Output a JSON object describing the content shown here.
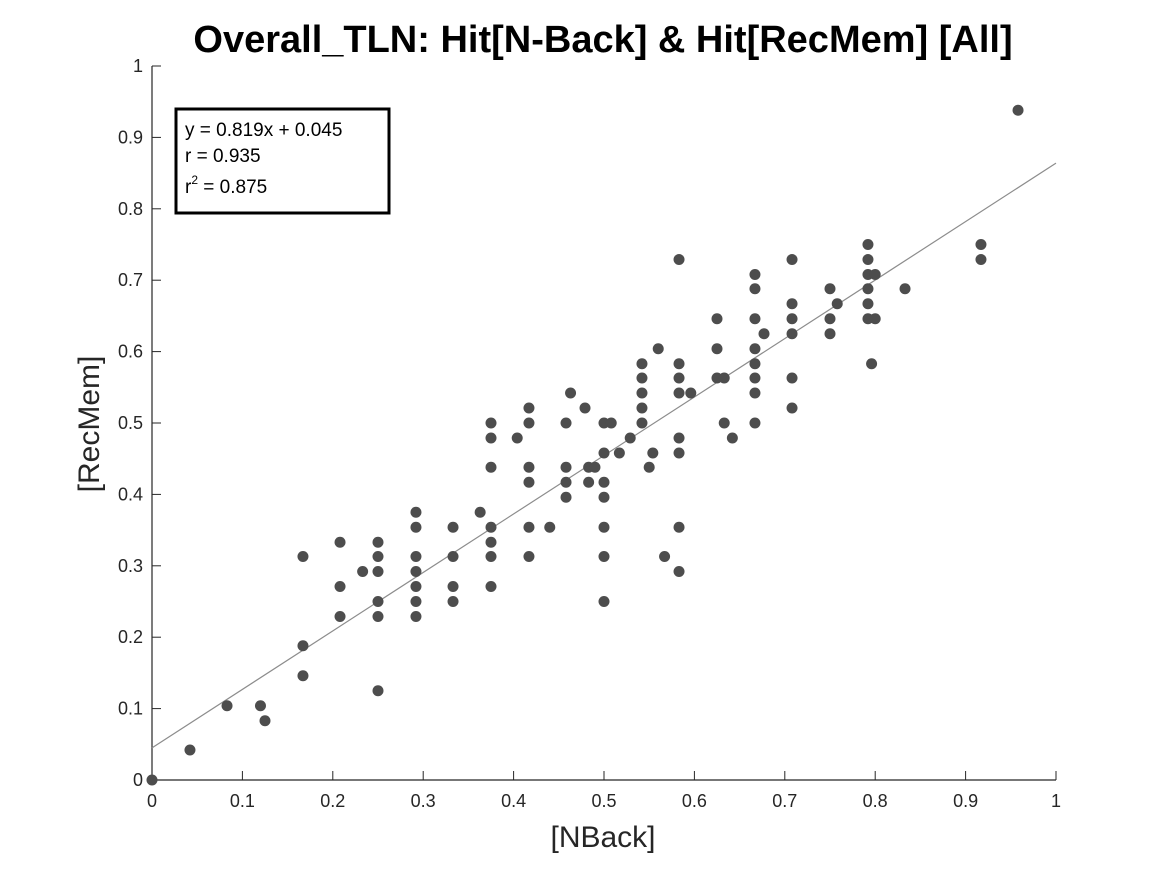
{
  "chart_data": {
    "type": "scatter",
    "title": "Overall_TLN: Hit[N-Back] & Hit[RecMem] [All]",
    "xlabel": "[NBack]",
    "ylabel": "[RecMem]",
    "xlim": [
      0,
      1
    ],
    "ylim": [
      0,
      1
    ],
    "xticks": [
      0,
      0.1,
      0.2,
      0.3,
      0.4,
      0.5,
      0.6,
      0.7,
      0.8,
      0.9,
      1
    ],
    "yticks": [
      0,
      0.1,
      0.2,
      0.3,
      0.4,
      0.5,
      0.6,
      0.7,
      0.8,
      0.9,
      1
    ],
    "xtick_labels": [
      "0",
      "0.1",
      "0.2",
      "0.3",
      "0.4",
      "0.5",
      "0.6",
      "0.7",
      "0.8",
      "0.9",
      "1"
    ],
    "ytick_labels": [
      "0",
      "0.1",
      "0.2",
      "0.3",
      "0.4",
      "0.5",
      "0.6",
      "0.7",
      "0.8",
      "0.9",
      "1"
    ],
    "grid": false,
    "marker_color": "#4d4d4d",
    "fit_line_color": "#8c8c8c",
    "fit_line": {
      "slope": 0.819,
      "intercept": 0.045
    },
    "stats": {
      "equation": "y = 0.819x + 0.045",
      "r": "r = 0.935",
      "r2_prefix": "r",
      "r2_exponent": "2",
      "r2_suffix": " = 0.875"
    },
    "points": [
      [
        0,
        0
      ],
      [
        0.042,
        0.042
      ],
      [
        0.083,
        0.104
      ],
      [
        0.125,
        0.083
      ],
      [
        0.12,
        0.104
      ],
      [
        0.167,
        0.146
      ],
      [
        0.167,
        0.188
      ],
      [
        0.167,
        0.313
      ],
      [
        0.208,
        0.229
      ],
      [
        0.208,
        0.271
      ],
      [
        0.208,
        0.333
      ],
      [
        0.233,
        0.292
      ],
      [
        0.25,
        0.125
      ],
      [
        0.25,
        0.229
      ],
      [
        0.25,
        0.25
      ],
      [
        0.25,
        0.292
      ],
      [
        0.25,
        0.313
      ],
      [
        0.25,
        0.333
      ],
      [
        0.292,
        0.229
      ],
      [
        0.292,
        0.25
      ],
      [
        0.292,
        0.271
      ],
      [
        0.292,
        0.292
      ],
      [
        0.292,
        0.313
      ],
      [
        0.292,
        0.354
      ],
      [
        0.292,
        0.375
      ],
      [
        0.333,
        0.25
      ],
      [
        0.333,
        0.271
      ],
      [
        0.333,
        0.313
      ],
      [
        0.333,
        0.354
      ],
      [
        0.363,
        0.375
      ],
      [
        0.375,
        0.271
      ],
      [
        0.375,
        0.313
      ],
      [
        0.375,
        0.333
      ],
      [
        0.375,
        0.354
      ],
      [
        0.375,
        0.438
      ],
      [
        0.375,
        0.479
      ],
      [
        0.375,
        0.5
      ],
      [
        0.404,
        0.479
      ],
      [
        0.417,
        0.313
      ],
      [
        0.417,
        0.354
      ],
      [
        0.417,
        0.417
      ],
      [
        0.417,
        0.438
      ],
      [
        0.417,
        0.5
      ],
      [
        0.417,
        0.521
      ],
      [
        0.44,
        0.354
      ],
      [
        0.458,
        0.396
      ],
      [
        0.458,
        0.417
      ],
      [
        0.458,
        0.438
      ],
      [
        0.458,
        0.5
      ],
      [
        0.463,
        0.542
      ],
      [
        0.479,
        0.521
      ],
      [
        0.483,
        0.438
      ],
      [
        0.483,
        0.417
      ],
      [
        0.49,
        0.438
      ],
      [
        0.5,
        0.25
      ],
      [
        0.5,
        0.313
      ],
      [
        0.5,
        0.354
      ],
      [
        0.5,
        0.396
      ],
      [
        0.5,
        0.417
      ],
      [
        0.5,
        0.458
      ],
      [
        0.5,
        0.5
      ],
      [
        0.508,
        0.5
      ],
      [
        0.517,
        0.458
      ],
      [
        0.529,
        0.479
      ],
      [
        0.542,
        0.5
      ],
      [
        0.542,
        0.521
      ],
      [
        0.542,
        0.542
      ],
      [
        0.542,
        0.563
      ],
      [
        0.542,
        0.583
      ],
      [
        0.55,
        0.438
      ],
      [
        0.554,
        0.458
      ],
      [
        0.56,
        0.604
      ],
      [
        0.567,
        0.313
      ],
      [
        0.583,
        0.292
      ],
      [
        0.583,
        0.354
      ],
      [
        0.583,
        0.458
      ],
      [
        0.583,
        0.479
      ],
      [
        0.583,
        0.542
      ],
      [
        0.583,
        0.563
      ],
      [
        0.583,
        0.583
      ],
      [
        0.583,
        0.729
      ],
      [
        0.596,
        0.542
      ],
      [
        0.625,
        0.563
      ],
      [
        0.625,
        0.604
      ],
      [
        0.625,
        0.646
      ],
      [
        0.633,
        0.563
      ],
      [
        0.633,
        0.5
      ],
      [
        0.642,
        0.479
      ],
      [
        0.667,
        0.5
      ],
      [
        0.667,
        0.542
      ],
      [
        0.667,
        0.563
      ],
      [
        0.667,
        0.583
      ],
      [
        0.667,
        0.604
      ],
      [
        0.667,
        0.646
      ],
      [
        0.667,
        0.688
      ],
      [
        0.667,
        0.708
      ],
      [
        0.677,
        0.625
      ],
      [
        0.708,
        0.521
      ],
      [
        0.708,
        0.563
      ],
      [
        0.708,
        0.625
      ],
      [
        0.708,
        0.646
      ],
      [
        0.708,
        0.667
      ],
      [
        0.708,
        0.729
      ],
      [
        0.75,
        0.625
      ],
      [
        0.75,
        0.646
      ],
      [
        0.75,
        0.688
      ],
      [
        0.758,
        0.667
      ],
      [
        0.792,
        0.646
      ],
      [
        0.792,
        0.667
      ],
      [
        0.792,
        0.688
      ],
      [
        0.792,
        0.708
      ],
      [
        0.792,
        0.729
      ],
      [
        0.792,
        0.75
      ],
      [
        0.796,
        0.583
      ],
      [
        0.8,
        0.646
      ],
      [
        0.8,
        0.708
      ],
      [
        0.833,
        0.688
      ],
      [
        0.917,
        0.729
      ],
      [
        0.917,
        0.75
      ],
      [
        0.958,
        0.938
      ]
    ]
  }
}
